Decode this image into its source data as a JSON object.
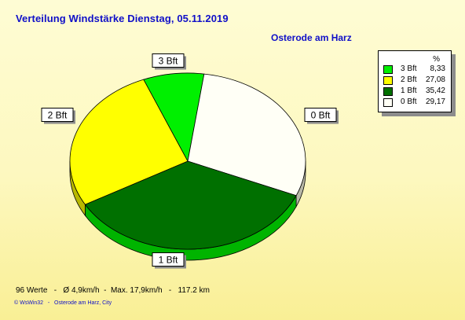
{
  "title": "Verteilung Windstärke  Dienstag, 05.11.2019",
  "subtitle": "Osterode am Harz",
  "chart_data": {
    "type": "pie",
    "title": "Verteilung Windstärke  Dienstag, 05.11.2019",
    "slices": [
      {
        "label": "3 Bft",
        "value": 8.33,
        "color": "#00f000",
        "dark": "#009a00"
      },
      {
        "label": "0 Bft",
        "value": 29.17,
        "color": "#fffff6",
        "dark": "#b8b8a8"
      },
      {
        "label": "1 Bft",
        "value": 35.42,
        "color": "#007000",
        "dark": "#00b400"
      },
      {
        "label": "2 Bft",
        "value": 27.08,
        "color": "#ffff00",
        "dark": "#b8b800"
      }
    ],
    "legend": {
      "header": "%",
      "position": "top-right",
      "entries": [
        {
          "label": "3 Bft",
          "value": "8,33",
          "color": "#00f000"
        },
        {
          "label": "2 Bft",
          "value": "27,08",
          "color": "#ffff00"
        },
        {
          "label": "1 Bft",
          "value": "35,42",
          "color": "#007000"
        },
        {
          "label": "0 Bft",
          "value": "29,17",
          "color": "#fffff6"
        }
      ]
    }
  },
  "footer": "96 Werte   -   Ø 4,9km/h  -  Max. 17,9km/h   -   117.2 km",
  "copyright": "© WsWin32   -   Osterode am Harz, City"
}
